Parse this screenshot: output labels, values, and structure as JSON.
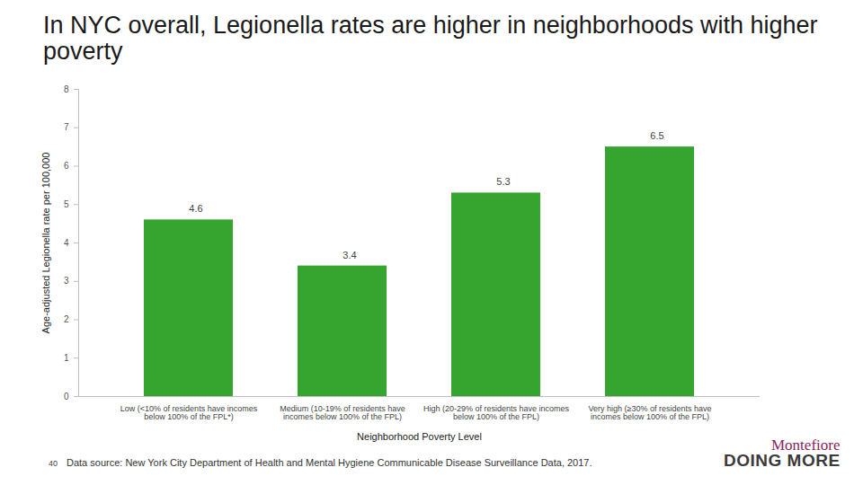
{
  "chart_data": {
    "type": "bar",
    "title": "In NYC overall, Legionella rates are higher in neighborhoods with higher poverty",
    "x_label": "Neighborhood Poverty Level",
    "y_label": "Age-adjusted Legionella rate per 100,000",
    "categories": [
      "Low (<10% of residents have incomes\nbelow 100% of the FPL*)",
      "Medium (10-19% of residents have\nincomes below 100% of the FPL)",
      "High (20-29% of residents have incomes\nbelow 100% of the FPL)",
      "Very high (≥30% of residents have\nincomes below 100% of the FPL)"
    ],
    "values": [
      4.6,
      3.4,
      5.3,
      6.5
    ],
    "color": "#36a52f",
    "ylim": [
      0,
      8
    ],
    "yticks": [
      0,
      1,
      2,
      3,
      4,
      5,
      6,
      7,
      8
    ],
    "grid": false,
    "data_labels": true
  },
  "footer": {
    "page_number": "40",
    "source": "Data source: New York City Department of Health and Mental Hygiene Communicable Disease Surveillance Data, 2017.",
    "logo": [
      "Montefiore",
      "DOING MORE"
    ]
  }
}
